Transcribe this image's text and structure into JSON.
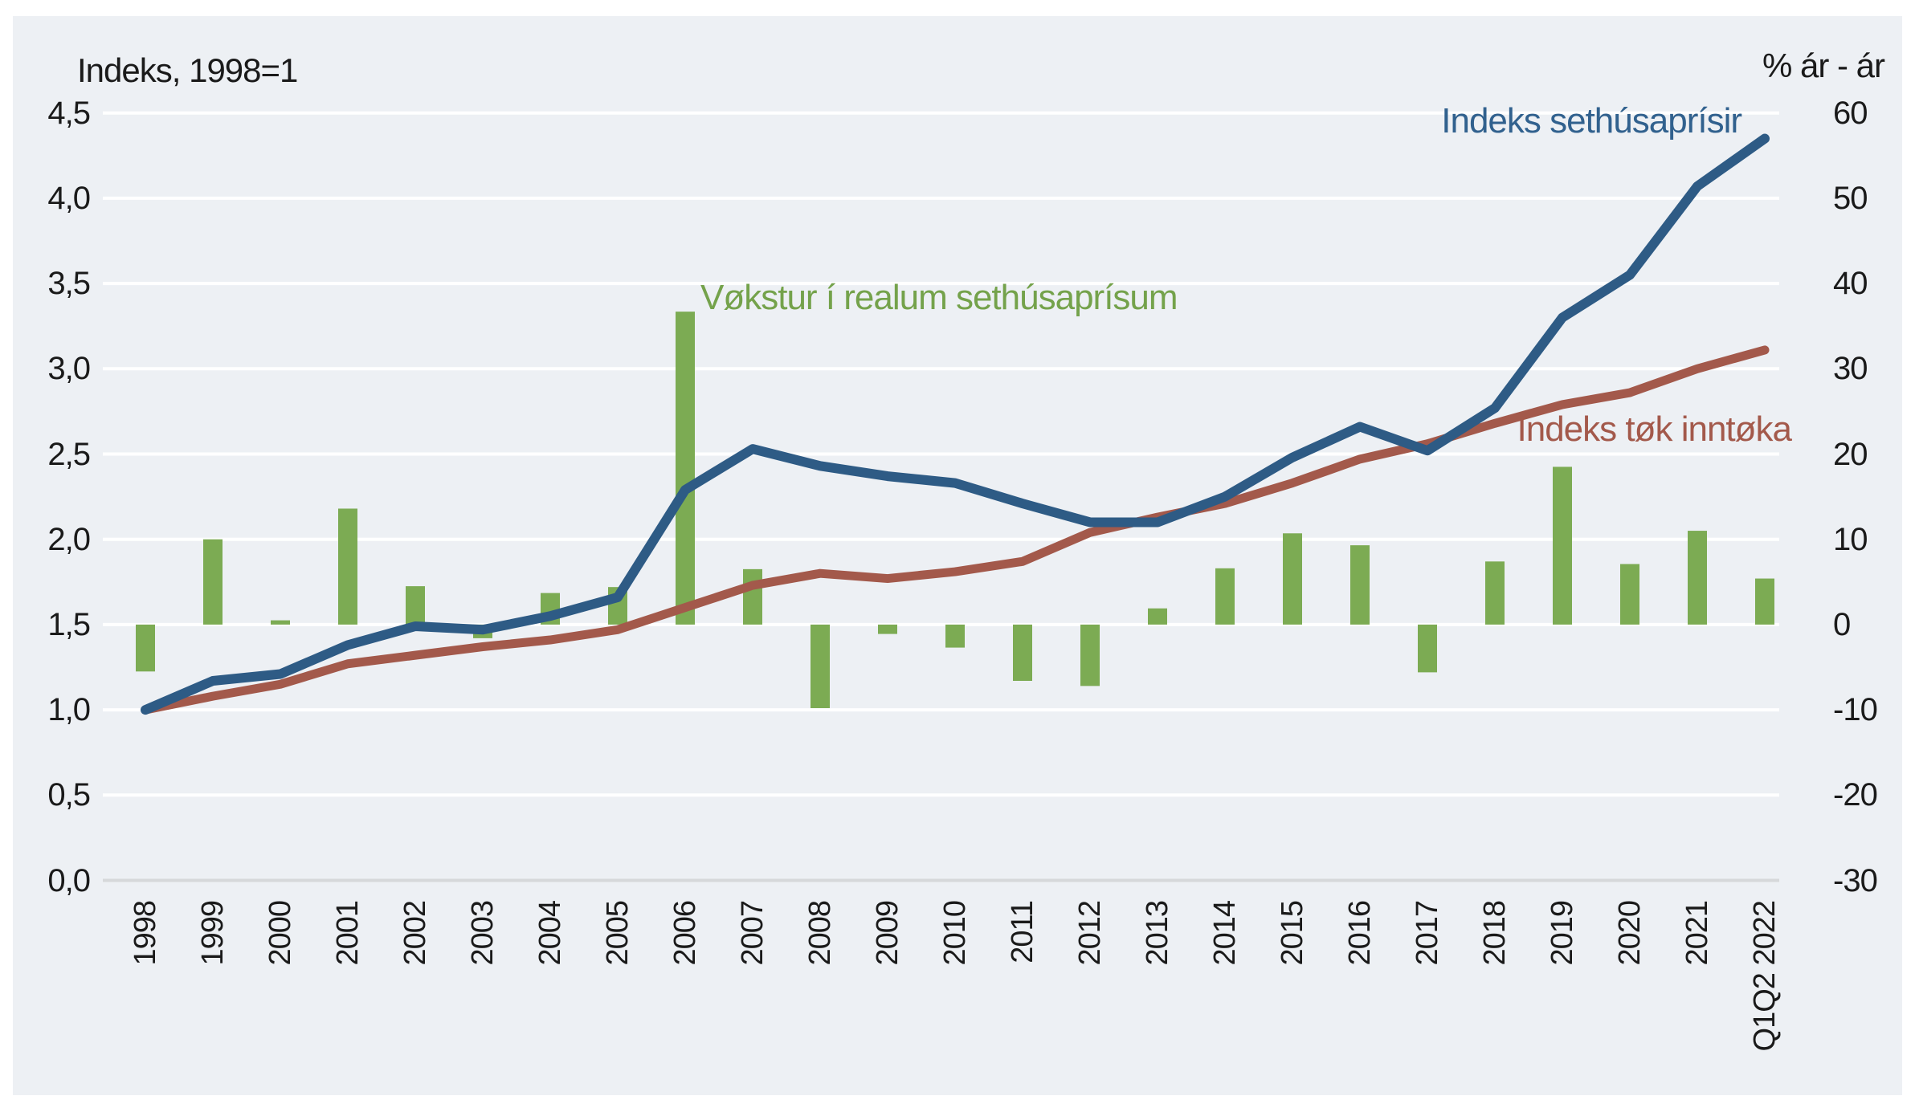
{
  "page": {
    "left_axis_title": "Indeks, 1998=1",
    "right_axis_title": "% ár - ár"
  },
  "chart_data": {
    "type": "combo-bar-line",
    "background": "#edf0f4",
    "gridline_color": "#ffffff",
    "zero_line_color": "#d6d8da",
    "grid": true,
    "legend_position": "inline-annotations",
    "categories": [
      "1998",
      "1999",
      "2000",
      "2001",
      "2002",
      "2003",
      "2004",
      "2005",
      "2006",
      "2007",
      "2008",
      "2009",
      "2010",
      "2011",
      "2012",
      "2013",
      "2014",
      "2015",
      "2016",
      "2017",
      "2018",
      "2019",
      "2020",
      "2021",
      "Q1Q2 2022"
    ],
    "left_axis": {
      "title": "Indeks, 1998=1",
      "tick_labels": [
        "4,5",
        "4,0",
        "3,5",
        "3,0",
        "2,5",
        "2,0",
        "1,5",
        "1,0",
        "0,5",
        "0,0"
      ],
      "tick_values": [
        4.5,
        4.0,
        3.5,
        3.0,
        2.5,
        2.0,
        1.5,
        1.0,
        0.5,
        0.0
      ],
      "min": 0,
      "max": 4.5
    },
    "right_axis": {
      "title": "% ár - ár",
      "tick_labels": [
        "60",
        "50",
        "40",
        "30",
        "20",
        "10",
        "0",
        "-10",
        "-20",
        "-30"
      ],
      "tick_values": [
        60,
        50,
        40,
        30,
        20,
        10,
        0,
        -10,
        -20,
        -30
      ],
      "min": -30,
      "max": 60,
      "note_zero_percent_aligns_with_left_index": 1.5
    },
    "series": [
      {
        "name": "Indeks sethúsaprísir",
        "type": "line",
        "axis": "left",
        "color": "#2e5b85",
        "values": [
          1.0,
          1.17,
          1.21,
          1.38,
          1.49,
          1.47,
          1.55,
          1.66,
          2.29,
          2.53,
          2.43,
          2.37,
          2.33,
          2.21,
          2.1,
          2.1,
          2.25,
          2.48,
          2.66,
          2.52,
          2.77,
          3.3,
          3.55,
          4.07,
          4.35
        ]
      },
      {
        "name": "Indeks tøk inntøka",
        "type": "line",
        "axis": "left",
        "color": "#a3594b",
        "values": [
          1.0,
          1.08,
          1.15,
          1.27,
          1.32,
          1.37,
          1.41,
          1.47,
          1.6,
          1.73,
          1.8,
          1.77,
          1.81,
          1.87,
          2.04,
          2.13,
          2.21,
          2.33,
          2.47,
          2.56,
          2.68,
          2.79,
          2.86,
          3.0,
          3.11
        ]
      },
      {
        "name": "Vøkstur í realum sethúsaprísum",
        "type": "bar",
        "axis": "right",
        "color": "#7cab53",
        "values": [
          -5.5,
          10.0,
          0.5,
          13.6,
          4.5,
          -1.6,
          3.7,
          4.4,
          36.7,
          6.5,
          -9.8,
          -1.1,
          -2.7,
          -6.6,
          -7.2,
          1.9,
          6.6,
          10.7,
          9.3,
          -5.6,
          7.4,
          18.5,
          7.1,
          11.0,
          5.4
        ]
      }
    ]
  }
}
